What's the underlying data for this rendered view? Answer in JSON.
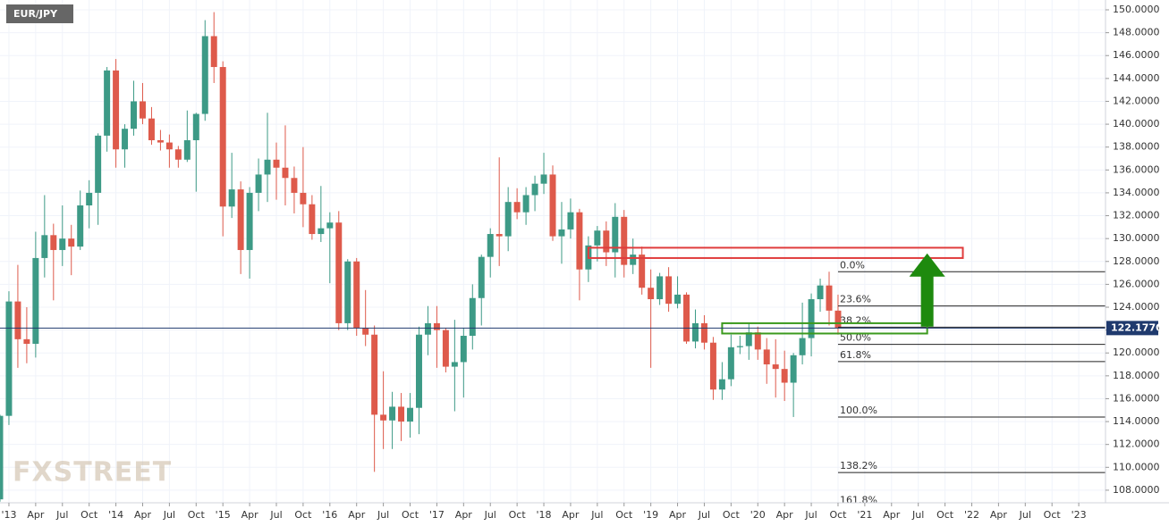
{
  "chart_data": {
    "type": "candlestick",
    "title": "EUR/JPY",
    "watermark": "FXSTREET",
    "up_color": "#3d9a86",
    "down_color": "#de5a4b",
    "x": [
      "2012-12",
      "2013-01",
      "2013-02",
      "2013-03",
      "2013-04",
      "2013-05",
      "2013-06",
      "2013-07",
      "2013-08",
      "2013-09",
      "2013-10",
      "2013-11",
      "2013-12",
      "2014-01",
      "2014-02",
      "2014-03",
      "2014-04",
      "2014-05",
      "2014-06",
      "2014-07",
      "2014-08",
      "2014-09",
      "2014-10",
      "2014-11",
      "2014-12",
      "2015-01",
      "2015-02",
      "2015-03",
      "2015-04",
      "2015-05",
      "2015-06",
      "2015-07",
      "2015-08",
      "2015-09",
      "2015-10",
      "2015-11",
      "2015-12",
      "2016-01",
      "2016-02",
      "2016-03",
      "2016-04",
      "2016-05",
      "2016-06",
      "2016-07",
      "2016-08",
      "2016-09",
      "2016-10",
      "2016-11",
      "2016-12",
      "2017-01",
      "2017-02",
      "2017-03",
      "2017-04",
      "2017-05",
      "2017-06",
      "2017-07",
      "2017-08",
      "2017-09",
      "2017-10",
      "2017-11",
      "2017-12",
      "2018-01",
      "2018-02",
      "2018-03",
      "2018-04",
      "2018-05",
      "2018-06",
      "2018-07",
      "2018-08",
      "2018-09",
      "2018-10",
      "2018-11",
      "2018-12",
      "2019-01",
      "2019-02",
      "2019-03",
      "2019-04",
      "2019-05",
      "2019-06",
      "2019-07",
      "2019-08",
      "2019-09",
      "2019-10",
      "2019-11",
      "2019-12",
      "2020-01",
      "2020-02",
      "2020-03",
      "2020-04",
      "2020-05",
      "2020-06",
      "2020-07",
      "2020-08",
      "2020-09",
      "2020-10"
    ],
    "open": [
      107.2,
      114.5,
      124.5,
      121.2,
      120.8,
      128.3,
      130.3,
      129.0,
      130.0,
      129.3,
      132.9,
      134.0,
      139.0,
      144.7,
      137.8,
      139.6,
      142.0,
      140.5,
      138.6,
      138.4,
      137.8,
      136.9,
      138.6,
      140.9,
      147.7,
      145.0,
      132.8,
      134.3,
      129.0,
      134.0,
      135.6,
      136.9,
      136.2,
      135.3,
      134.0,
      133.0,
      130.4,
      130.9,
      131.4,
      122.6,
      128.0,
      122.2,
      121.6,
      114.6,
      114.1,
      115.3,
      114.0,
      115.2,
      121.6,
      122.6,
      122.0,
      118.8,
      119.2,
      121.5,
      124.8,
      128.4,
      130.4,
      130.2,
      133.2,
      132.3,
      133.8,
      134.8,
      135.6,
      130.2,
      130.8,
      132.3,
      127.3,
      129.4,
      130.7,
      128.8,
      131.9,
      127.7,
      128.6,
      125.7,
      124.7,
      126.7,
      124.3,
      125.1,
      121.0,
      122.6,
      120.9,
      116.8,
      117.7,
      120.5,
      120.6,
      121.8,
      120.3,
      119.0,
      118.6,
      117.4,
      119.8,
      121.3,
      124.7,
      125.9,
      123.7
    ],
    "high": [
      114.6,
      125.4,
      127.7,
      124.0,
      130.6,
      133.8,
      131.3,
      132.9,
      131.2,
      134.2,
      135.1,
      139.2,
      145.0,
      145.7,
      140.0,
      143.8,
      143.6,
      141.5,
      139.5,
      139.1,
      138.1,
      141.2,
      141.0,
      149.1,
      149.8,
      145.5,
      137.5,
      135.0,
      134.5,
      137.0,
      141.0,
      138.4,
      139.9,
      136.3,
      138.0,
      133.8,
      134.6,
      132.3,
      132.4,
      128.2,
      128.3,
      125.5,
      122.4,
      118.4,
      116.6,
      116.5,
      116.5,
      122.3,
      124.1,
      124.1,
      122.2,
      122.9,
      122.2,
      126.0,
      128.6,
      130.9,
      137.1,
      134.5,
      134.4,
      134.5,
      135.5,
      137.5,
      136.4,
      133.2,
      133.5,
      132.6,
      130.2,
      131.1,
      131.5,
      133.1,
      132.5,
      130.0,
      129.3,
      127.3,
      127.0,
      127.5,
      126.7,
      125.3,
      123.8,
      123.3,
      121.4,
      119.2,
      121.6,
      121.5,
      122.6,
      122.3,
      121.3,
      121.2,
      120.2,
      120.0,
      124.4,
      125.2,
      126.5,
      127.1,
      125.1
    ],
    "low": [
      107.0,
      113.7,
      118.7,
      119.1,
      119.6,
      126.6,
      124.6,
      127.6,
      126.8,
      129.0,
      130.9,
      131.2,
      137.6,
      136.2,
      136.2,
      139.0,
      140.0,
      138.2,
      137.7,
      136.2,
      136.2,
      136.7,
      134.1,
      140.3,
      143.6,
      130.2,
      131.8,
      126.9,
      126.5,
      132.4,
      133.2,
      133.4,
      132.9,
      132.2,
      131.0,
      129.9,
      129.7,
      126.1,
      122.0,
      122.0,
      121.5,
      120.6,
      109.6,
      111.6,
      111.6,
      112.3,
      112.6,
      112.9,
      119.8,
      118.7,
      118.3,
      114.9,
      116.1,
      120.3,
      122.4,
      126.6,
      127.6,
      128.9,
      131.7,
      131.2,
      132.4,
      133.9,
      129.8,
      127.8,
      130.0,
      124.6,
      126.2,
      128.0,
      127.6,
      126.6,
      126.6,
      126.9,
      125.1,
      118.7,
      124.2,
      123.6,
      123.9,
      120.8,
      120.4,
      120.3,
      115.9,
      115.9,
      117.1,
      119.9,
      119.4,
      119.4,
      117.3,
      116.1,
      115.8,
      114.4,
      119.0,
      119.7,
      123.6,
      122.4,
      121.6
    ],
    "close": [
      114.5,
      124.5,
      121.2,
      120.8,
      128.3,
      130.3,
      129.0,
      130.0,
      129.3,
      132.9,
      134.0,
      139.0,
      144.7,
      137.8,
      139.6,
      142.0,
      140.5,
      138.6,
      138.4,
      137.8,
      136.9,
      138.6,
      140.9,
      147.7,
      145.0,
      132.8,
      134.3,
      129.0,
      134.0,
      135.6,
      136.9,
      136.2,
      135.3,
      134.0,
      133.0,
      130.4,
      130.9,
      131.4,
      122.6,
      128.0,
      122.2,
      121.6,
      114.6,
      114.1,
      115.3,
      114.0,
      115.2,
      121.6,
      122.6,
      122.0,
      118.8,
      119.2,
      121.5,
      124.8,
      128.4,
      130.4,
      130.2,
      133.2,
      132.3,
      133.8,
      134.8,
      135.6,
      130.2,
      130.8,
      132.3,
      127.3,
      129.4,
      130.7,
      128.8,
      131.9,
      127.7,
      128.6,
      125.7,
      124.7,
      126.7,
      124.3,
      125.1,
      121.0,
      122.6,
      120.9,
      116.8,
      117.7,
      120.5,
      120.6,
      121.8,
      120.3,
      119.0,
      118.6,
      117.4,
      119.8,
      121.3,
      124.7,
      125.9,
      123.7,
      122.177
    ],
    "xlim": [
      "2012-12",
      "2023-04"
    ],
    "xticks": [
      {
        "value": "2013-01",
        "label": "'13"
      },
      {
        "value": "2013-04",
        "label": "Apr"
      },
      {
        "value": "2013-07",
        "label": "Jul"
      },
      {
        "value": "2013-10",
        "label": "Oct"
      },
      {
        "value": "2014-01",
        "label": "'14"
      },
      {
        "value": "2014-04",
        "label": "Apr"
      },
      {
        "value": "2014-07",
        "label": "Jul"
      },
      {
        "value": "2014-10",
        "label": "Oct"
      },
      {
        "value": "2015-01",
        "label": "'15"
      },
      {
        "value": "2015-04",
        "label": "Apr"
      },
      {
        "value": "2015-07",
        "label": "Jul"
      },
      {
        "value": "2015-10",
        "label": "Oct"
      },
      {
        "value": "2016-01",
        "label": "'16"
      },
      {
        "value": "2016-04",
        "label": "Apr"
      },
      {
        "value": "2016-07",
        "label": "Jul"
      },
      {
        "value": "2016-10",
        "label": "Oct"
      },
      {
        "value": "2017-01",
        "label": "'17"
      },
      {
        "value": "2017-04",
        "label": "Apr"
      },
      {
        "value": "2017-07",
        "label": "Jul"
      },
      {
        "value": "2017-10",
        "label": "Oct"
      },
      {
        "value": "2018-01",
        "label": "'18"
      },
      {
        "value": "2018-04",
        "label": "Apr"
      },
      {
        "value": "2018-07",
        "label": "Jul"
      },
      {
        "value": "2018-10",
        "label": "Oct"
      },
      {
        "value": "2019-01",
        "label": "'19"
      },
      {
        "value": "2019-04",
        "label": "Apr"
      },
      {
        "value": "2019-07",
        "label": "Jul"
      },
      {
        "value": "2019-10",
        "label": "Oct"
      },
      {
        "value": "2020-01",
        "label": "'20"
      },
      {
        "value": "2020-04",
        "label": "Apr"
      },
      {
        "value": "2020-07",
        "label": "Jul"
      },
      {
        "value": "2020-10",
        "label": "Oct"
      },
      {
        "value": "2021-01",
        "label": "'21"
      },
      {
        "value": "2021-04",
        "label": "Apr"
      },
      {
        "value": "2021-07",
        "label": "Jul"
      },
      {
        "value": "2021-10",
        "label": "Oct"
      },
      {
        "value": "2022-01",
        "label": "'22"
      },
      {
        "value": "2022-04",
        "label": "Apr"
      },
      {
        "value": "2022-07",
        "label": "Jul"
      },
      {
        "value": "2022-10",
        "label": "Oct"
      },
      {
        "value": "2023-01",
        "label": "'23"
      }
    ],
    "ylim": [
      106.9,
      150.86
    ],
    "yticks": [
      {
        "value": 150,
        "label": "150.0000"
      },
      {
        "value": 148,
        "label": "148.0000"
      },
      {
        "value": 146,
        "label": "146.0000"
      },
      {
        "value": 144,
        "label": "144.0000"
      },
      {
        "value": 142,
        "label": "142.0000"
      },
      {
        "value": 140,
        "label": "140.0000"
      },
      {
        "value": 138,
        "label": "138.0000"
      },
      {
        "value": 136,
        "label": "136.0000"
      },
      {
        "value": 134,
        "label": "134.0000"
      },
      {
        "value": 132,
        "label": "132.0000"
      },
      {
        "value": 130,
        "label": "130.0000"
      },
      {
        "value": 128,
        "label": "128.0000"
      },
      {
        "value": 126,
        "label": "126.0000"
      },
      {
        "value": 124,
        "label": "124.0000"
      },
      {
        "value": 122,
        "label": "122.0000"
      },
      {
        "value": 120,
        "label": "120.0000"
      },
      {
        "value": 118,
        "label": "118.0000"
      },
      {
        "value": 116,
        "label": "116.0000"
      },
      {
        "value": 114,
        "label": "114.0000"
      },
      {
        "value": 112,
        "label": "112.0000"
      },
      {
        "value": 110,
        "label": "110.0000"
      },
      {
        "value": 108,
        "label": "108.0000"
      }
    ],
    "grid": true,
    "last_price": {
      "value": 122.177,
      "label": "122.1770",
      "color": "#1f3a6e"
    },
    "fib": {
      "start": "2020-10",
      "high": 127.1,
      "low": 114.4,
      "levels": [
        {
          "value": 0,
          "label": "0.0%"
        },
        {
          "value": 23.6,
          "label": "23.6%"
        },
        {
          "value": 38.2,
          "label": "38.2%"
        },
        {
          "value": 50,
          "label": "50.0%"
        },
        {
          "value": 61.8,
          "label": "61.8%"
        },
        {
          "value": 100,
          "label": "100.0%"
        },
        {
          "value": 138.2,
          "label": "138.2%"
        },
        {
          "value": 161.8,
          "label": "161.8%"
        }
      ]
    },
    "zones": [
      {
        "start": "2018-06",
        "end": "2021-12",
        "low": 128.3,
        "high": 129.2,
        "color": "#e03c3c"
      },
      {
        "start": "2019-09",
        "end": "2021-08",
        "low": 121.7,
        "high": 122.6,
        "color": "#3c9a1e"
      }
    ],
    "arrow": {
      "x": "2021-08",
      "from": 122.3,
      "to": 128.7,
      "color": "#1e8a0e"
    }
  }
}
